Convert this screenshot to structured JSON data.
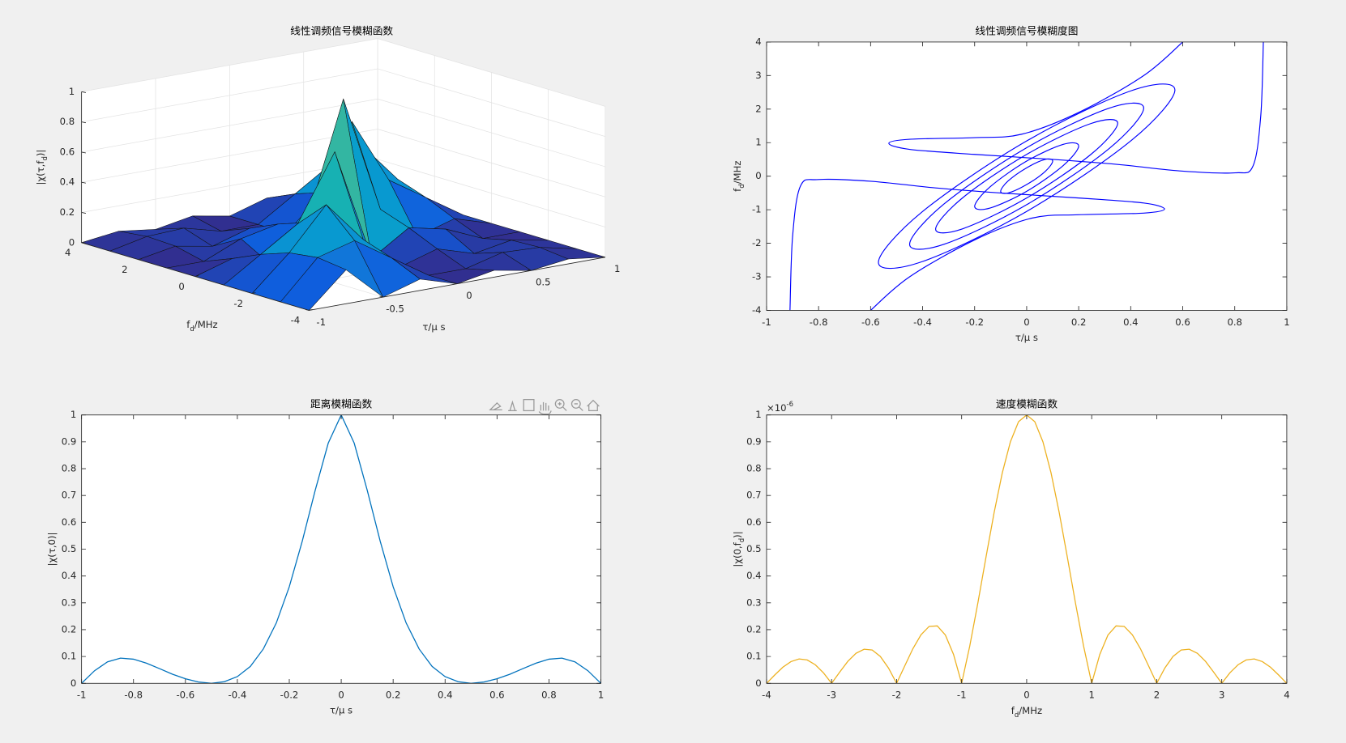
{
  "chart_data": [
    {
      "type": "surface3d",
      "title": "线性调频信号模糊函数",
      "x": [
        -1,
        -0.75,
        -0.5,
        -0.25,
        0,
        0.25,
        0.5,
        0.75,
        1
      ],
      "y": [
        -4,
        -3,
        -2,
        -1,
        0,
        1,
        2,
        3,
        4
      ],
      "z": [
        [
          0,
          0,
          0,
          0,
          0,
          0,
          0,
          0,
          0
        ],
        [
          0.225,
          0.25,
          0.225,
          0.159,
          0.075,
          0,
          0.045,
          0.053,
          0.032
        ],
        [
          0,
          0.318,
          0.5,
          0.318,
          0,
          0.106,
          0,
          0.064,
          0
        ],
        [
          0.075,
          0.159,
          0.225,
          0.75,
          0.225,
          0.159,
          0.075,
          0,
          0.045
        ],
        [
          0,
          0,
          0,
          0,
          1,
          0,
          0,
          0,
          0
        ],
        [
          0.045,
          0,
          0.075,
          0.159,
          0.225,
          0.75,
          0.225,
          0.159,
          0.075
        ],
        [
          0,
          0.064,
          0,
          0.106,
          0,
          0.318,
          0.5,
          0.318,
          0
        ],
        [
          0.032,
          0.053,
          0.045,
          0,
          0.075,
          0.159,
          0.225,
          0.25,
          0.225
        ],
        [
          0,
          0,
          0,
          0,
          0,
          0,
          0,
          0,
          0
        ]
      ],
      "xlim": [
        -1,
        1
      ],
      "ylim": [
        -4,
        4
      ],
      "zlim": [
        0,
        1
      ],
      "xticks": [
        -1,
        -0.5,
        0,
        0.5,
        1
      ],
      "yticks": [
        -4,
        -2,
        0,
        2,
        4
      ],
      "zticks": [
        0,
        0.2,
        0.4,
        0.6,
        0.8,
        1
      ],
      "xlabel": "τ/μ s",
      "ylabel": [
        "f",
        "d",
        "/MHz"
      ],
      "zlabel": [
        "|χ(τ,f",
        "d",
        ")|"
      ],
      "grid": true,
      "colormap": "parula"
    },
    {
      "type": "contour",
      "title": "线性调频信号模糊度图",
      "series": [
        {
          "color": "#0000ff",
          "x": [
            0.1,
            0.071,
            0,
            -0.071,
            -0.1,
            -0.071,
            0,
            0.071,
            0.1
          ],
          "y": [
            0.45,
            0.5,
            0.25,
            -0.14,
            -0.45,
            -0.5,
            -0.25,
            0.14,
            0.45
          ]
        },
        {
          "color": "#0000ff",
          "x": [
            0.2,
            0.141,
            0,
            -0.141,
            -0.2,
            -0.141,
            0,
            0.141,
            0.2
          ],
          "y": [
            0.9,
            0.95,
            0.45,
            -0.32,
            -0.9,
            -0.95,
            -0.45,
            0.32,
            0.9
          ]
        },
        {
          "color": "#0000ff",
          "x": [
            0.35,
            0.247,
            0,
            -0.247,
            -0.35,
            -0.247,
            0,
            0.247,
            0.35
          ],
          "y": [
            1.58,
            1.57,
            0.65,
            -0.65,
            -1.58,
            -1.57,
            -0.65,
            0.65,
            1.58
          ]
        },
        {
          "color": "#0000ff",
          "x": [
            0.45,
            0.318,
            0,
            -0.318,
            -0.45,
            -0.318,
            0,
            0.318,
            0.45
          ],
          "y": [
            2.03,
            2.03,
            0.85,
            -0.83,
            -2.03,
            -2.03,
            -0.85,
            0.83,
            2.03
          ]
        },
        {
          "color": "#0000ff",
          "x": [
            0.57,
            0.403,
            0,
            -0.403,
            -0.57,
            -0.403,
            0,
            0.403,
            0.57
          ],
          "y": [
            2.57,
            2.55,
            1.05,
            -1.07,
            -2.57,
            -2.55,
            -1.05,
            1.07,
            2.57
          ]
        },
        {
          "color": "#0000ff",
          "x": [
            -0.91,
            -0.9,
            -0.87,
            -0.8,
            -0.6,
            -0.35,
            -0.1,
            0.2,
            0.45,
            0.53,
            0.45,
            0.2,
            0.02,
            -0.2,
            -0.45,
            -0.6
          ],
          "y": [
            -4,
            -1.8,
            -0.3,
            -0.1,
            -0.15,
            -0.35,
            -0.5,
            -0.65,
            -0.8,
            -0.98,
            -1.1,
            -1.15,
            -1.25,
            -1.9,
            -3,
            -4
          ]
        },
        {
          "color": "#0000ff",
          "x": [
            0.91,
            0.9,
            0.87,
            0.8,
            0.6,
            0.35,
            0.1,
            -0.2,
            -0.45,
            -0.53,
            -0.45,
            -0.2,
            -0.02,
            0.2,
            0.45,
            0.6
          ],
          "y": [
            4,
            1.8,
            0.3,
            0.1,
            0.15,
            0.35,
            0.5,
            0.65,
            0.8,
            0.98,
            1.1,
            1.15,
            1.25,
            1.9,
            3,
            4
          ]
        }
      ],
      "xlim": [
        -1,
        1
      ],
      "ylim": [
        -4,
        4
      ],
      "xticks": [
        -1,
        -0.8,
        -0.6,
        -0.4,
        -0.2,
        0,
        0.2,
        0.4,
        0.6,
        0.8,
        1
      ],
      "yticks": [
        -4,
        -3,
        -2,
        -1,
        0,
        1,
        2,
        3,
        4
      ],
      "xlabel": "τ/μ s",
      "ylabel": [
        "f",
        "d",
        "/MHz"
      ]
    },
    {
      "type": "line",
      "title": "距离模糊函数",
      "color": "#0072bd",
      "x": [
        -1,
        -0.95,
        -0.9,
        -0.85,
        -0.8,
        -0.75,
        -0.7,
        -0.65,
        -0.6,
        -0.55,
        -0.5,
        -0.45,
        -0.4,
        -0.35,
        -0.3,
        -0.25,
        -0.2,
        -0.15,
        -0.1,
        -0.05,
        0,
        0.05,
        0.1,
        0.15,
        0.2,
        0.25,
        0.3,
        0.35,
        0.4,
        0.45,
        0.5,
        0.55,
        0.6,
        0.65,
        0.7,
        0.75,
        0.8,
        0.85,
        0.9,
        0.95,
        1
      ],
      "values": [
        0,
        0.047,
        0.08,
        0.094,
        0.09,
        0.075,
        0.055,
        0.034,
        0.017,
        0.005,
        0,
        0.006,
        0.025,
        0.063,
        0.128,
        0.225,
        0.36,
        0.53,
        0.72,
        0.895,
        1,
        0.895,
        0.72,
        0.53,
        0.36,
        0.225,
        0.128,
        0.063,
        0.025,
        0.006,
        0,
        0.005,
        0.017,
        0.034,
        0.055,
        0.075,
        0.09,
        0.094,
        0.08,
        0.047,
        0
      ],
      "xlim": [
        -1,
        1
      ],
      "ylim": [
        0,
        1
      ],
      "xticks": [
        -1,
        -0.8,
        -0.6,
        -0.4,
        -0.2,
        0,
        0.2,
        0.4,
        0.6,
        0.8,
        1
      ],
      "yticks": [
        0,
        0.1,
        0.2,
        0.3,
        0.4,
        0.5,
        0.6,
        0.7,
        0.8,
        0.9,
        1
      ],
      "xlabel": "τ/μ s",
      "ylabel": "|χ(τ,0)|"
    },
    {
      "type": "line",
      "title": "速度模糊函数",
      "color": "#edb120",
      "x": [
        -4,
        -3.875,
        -3.75,
        -3.625,
        -3.5,
        -3.375,
        -3.25,
        -3.125,
        -3,
        -2.875,
        -2.75,
        -2.625,
        -2.5,
        -2.375,
        -2.25,
        -2.125,
        -2,
        -1.875,
        -1.75,
        -1.625,
        -1.5,
        -1.375,
        -1.25,
        -1.125,
        -1,
        -0.875,
        -0.75,
        -0.625,
        -0.5,
        -0.375,
        -0.25,
        -0.125,
        0,
        0.125,
        0.25,
        0.375,
        0.5,
        0.625,
        0.75,
        0.875,
        1,
        1.125,
        1.25,
        1.375,
        1.5,
        1.625,
        1.75,
        1.875,
        2,
        2.125,
        2.25,
        2.375,
        2.5,
        2.625,
        2.75,
        2.875,
        3,
        3.125,
        3.25,
        3.375,
        3.5,
        3.625,
        3.75,
        3.875,
        4
      ],
      "values": [
        0,
        0.031,
        0.06,
        0.081,
        0.091,
        0.087,
        0.069,
        0.039,
        0,
        0.042,
        0.082,
        0.112,
        0.127,
        0.124,
        0.1,
        0.057,
        0,
        0.065,
        0.129,
        0.181,
        0.212,
        0.214,
        0.18,
        0.108,
        0,
        0.139,
        0.3,
        0.471,
        0.637,
        0.784,
        0.9,
        0.975,
        1,
        0.975,
        0.9,
        0.784,
        0.637,
        0.471,
        0.3,
        0.139,
        0,
        0.108,
        0.18,
        0.214,
        0.212,
        0.181,
        0.129,
        0.065,
        0,
        0.057,
        0.1,
        0.124,
        0.127,
        0.112,
        0.082,
        0.042,
        0,
        0.039,
        0.069,
        0.087,
        0.091,
        0.081,
        0.06,
        0.031,
        0
      ],
      "xlim": [
        -4,
        4
      ],
      "ylim": [
        0,
        1
      ],
      "xticks": [
        -4,
        -3,
        -2,
        -1,
        0,
        1,
        2,
        3,
        4
      ],
      "yticks": [
        0,
        0.1,
        0.2,
        0.3,
        0.4,
        0.5,
        0.6,
        0.7,
        0.8,
        0.9,
        1
      ],
      "y_multiplier": [
        "×10",
        "-6"
      ],
      "xlabel": [
        "f",
        "d",
        "/MHz"
      ],
      "ylabel": [
        "|χ(0,f",
        "d",
        ")|"
      ]
    }
  ]
}
